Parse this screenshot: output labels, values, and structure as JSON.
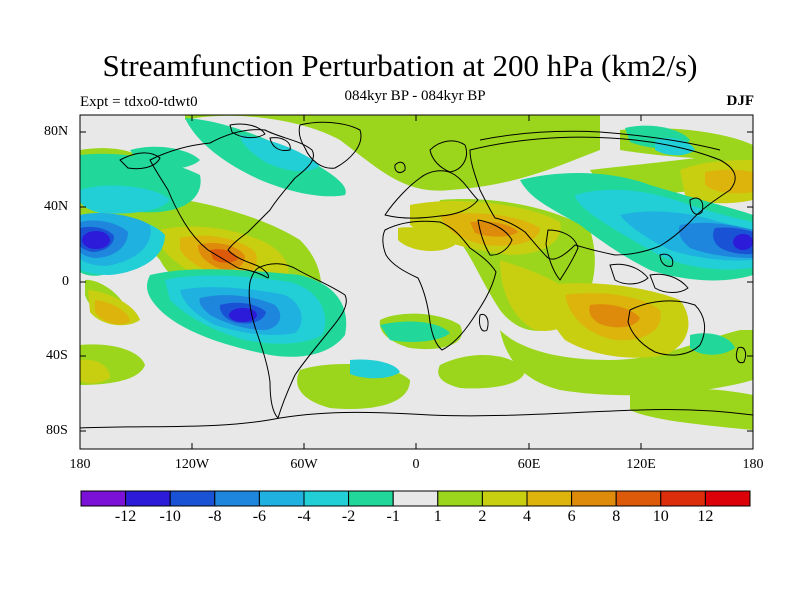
{
  "title": "Streamfunction Perturbation at 200 hPa (km2/s)",
  "left_subtitle": "Expt = tdxo0-tdwt0",
  "center_subtitle": "084kyr BP - 084kyr BP",
  "right_subtitle": "DJF",
  "lat_labels": [
    "80N",
    "40N",
    "0",
    "40S",
    "80S"
  ],
  "lon_labels": [
    "180",
    "120W",
    "60W",
    "0",
    "60E",
    "120E",
    "180"
  ],
  "colorbar": {
    "labels": [
      "-12",
      "-10",
      "-8",
      "-6",
      "-4",
      "-2",
      "-1",
      "1",
      "2",
      "4",
      "6",
      "8",
      "10",
      "12"
    ],
    "colors": [
      "#7b10d6",
      "#2c1bd8",
      "#1a52d6",
      "#1e86dc",
      "#1fb1e0",
      "#22cfd6",
      "#21d89a",
      "#e8e8e8",
      "#9bd61c",
      "#c7cf10",
      "#ddb40c",
      "#de8a0b",
      "#dd5a0a",
      "#dc2e0b",
      "#dc0008"
    ]
  }
}
